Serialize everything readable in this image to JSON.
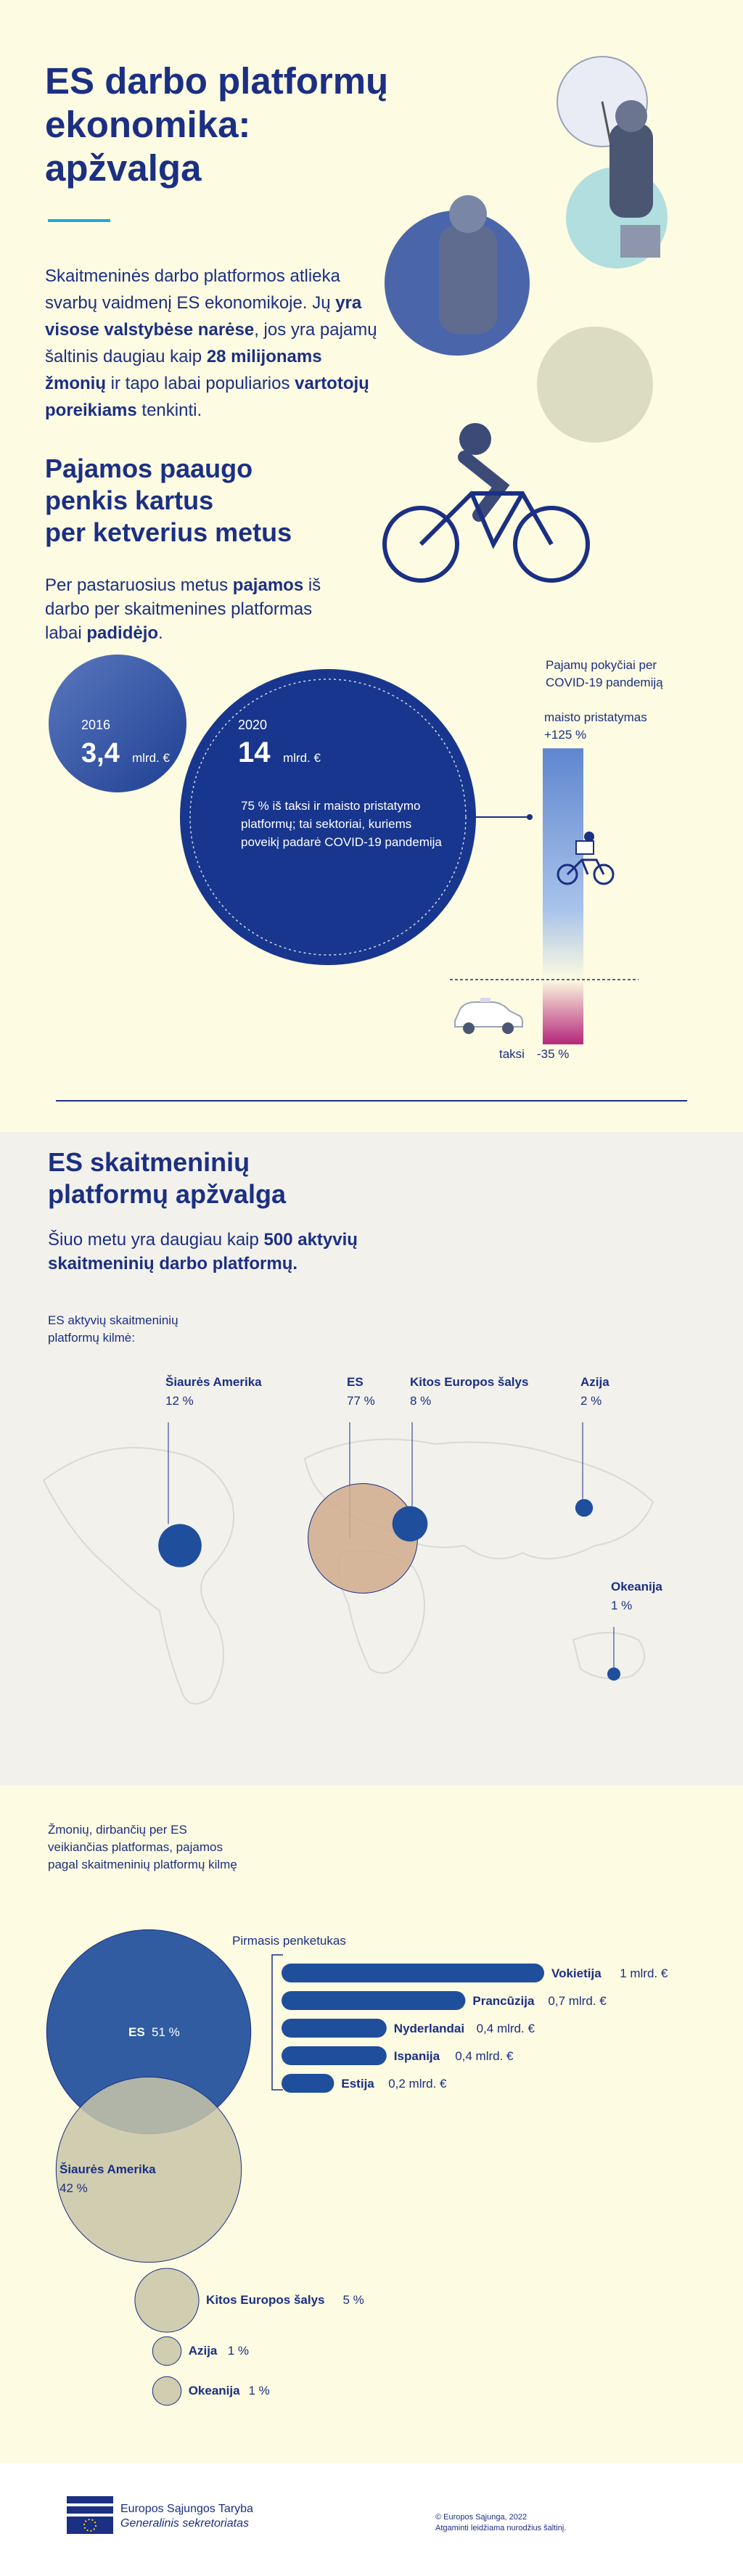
{
  "header": {
    "title_line1": "ES darbo platformų",
    "title_line2": "ekonomika:",
    "title_line3": "apžvalga"
  },
  "intro": {
    "t1": "Skaitmeninės darbo platformos atlieka svarbų vaidmenį ES ekonomikoje.",
    "t2a": "Jų ",
    "t2b": "yra visose valstybėse narėse",
    "t2c": ", jos yra pajamų šaltinis daugiau kaip ",
    "t2d": "28 milijonams žmonių",
    "t2e": " ir tapo labai populiarios ",
    "t2f": "vartotojų poreikiams",
    "t2g": " tenkinti."
  },
  "growth": {
    "heading_line1": "Pajamos paaugo",
    "heading_line2": "penkis kartus",
    "heading_line3": "per ketverius metus",
    "p1": "Per pastaruosius metus ",
    "p2": "pajamos",
    "p3": " iš darbo per skaitmenines platformas labai ",
    "p4": "padidėjo",
    "p5": ".",
    "y2016_label": "2016",
    "y2016_value": "3,4",
    "y2016_unit": "mlrd. €",
    "y2020_label": "2020",
    "y2020_value": "14",
    "y2020_unit": "mlrd. €",
    "note": "75 % iš taksi ir maisto pristatymo platformų; tai sektoriai, kuriems poveikį padarė COVID-19 pandemija"
  },
  "covid": {
    "title_line1": "Pajamų pokyčiai per",
    "title_line2": "COVID-19 pandemiją",
    "food_label": "maisto pristatymas",
    "food_value": "+125 %",
    "taxi_label": "taksi",
    "taxi_value": "-35 %"
  },
  "overview": {
    "heading_line1": "ES skaitmeninių",
    "heading_line2": "platformų apžvalga",
    "sub_a": "Šiuo metu yra daugiau kaip ",
    "sub_b": "500",
    "sub_c": "aktyvių skaitmeninių darbo platformų.",
    "origin_label_line1": "ES aktyvių skaitmeninių",
    "origin_label_line2": "platformų kilmė:"
  },
  "income": {
    "label_line1": "Žmonių, dirbančių per ES",
    "label_line2": "veikiančias platformas, pajamos",
    "label_line3": "pagal skaitmeninių platformų kilmę",
    "top5_title": "Pirmasis penketukas"
  },
  "footer": {
    "org_line1": "Europos Sąjungos Taryba",
    "org_line2": "Generalinis sekretoriatas",
    "copy_line1": "© Europos Sąjunga, 2022",
    "copy_line2": "Atgaminti leidžiama nurodžius šaltinį."
  },
  "chart_data": [
    {
      "type": "bar",
      "title": "Pajamų pokyčiai per COVID-19 pandemiją",
      "categories": [
        "maisto pristatymas",
        "taksi"
      ],
      "values": [
        125,
        -35
      ],
      "unit": "%"
    },
    {
      "type": "scatter",
      "title": "ES aktyvių skaitmeninių platformų kilmė",
      "categories": [
        "Šiaurės Amerika",
        "ES",
        "Kitos Europos šalys",
        "Azija",
        "Okeanija"
      ],
      "values": [
        12,
        77,
        8,
        2,
        1
      ],
      "value_labels": [
        "12 %",
        "77 %",
        "8 %",
        "2 %",
        "1 %"
      ],
      "unit": "%"
    },
    {
      "type": "scatter",
      "title": "Žmonių, dirbančių per ES veikiančias platformas, pajamos pagal skaitmeninių platformų kilmę",
      "categories": [
        "ES",
        "Šiaurės Amerika",
        "Kitos Europos šalys",
        "Azija",
        "Okeanija"
      ],
      "values": [
        51,
        42,
        5,
        1,
        1
      ],
      "value_labels": [
        "51 %",
        "42 %",
        "5 %",
        "1 %",
        "1 %"
      ],
      "unit": "%"
    },
    {
      "type": "bar",
      "title": "Pirmasis penketukas",
      "categories": [
        "Vokietija",
        "Prancūzija",
        "Nyderlandai",
        "Ispanija",
        "Estija"
      ],
      "values": [
        1.0,
        0.7,
        0.4,
        0.4,
        0.2
      ],
      "value_labels": [
        "1 mlrd. €",
        "0,7 mlrd. €",
        "0,4 mlrd. €",
        "0,4 mlrd. €",
        "0,2 mlrd. €"
      ],
      "unit": "mlrd. €"
    }
  ],
  "colors": {
    "navy": "#1b2f83",
    "blue": "#1f4e9c",
    "tan": "#d1ac8c",
    "beige": "#c8c4a8",
    "cyan": "#22a8d9",
    "magenta": "#b5267a"
  }
}
